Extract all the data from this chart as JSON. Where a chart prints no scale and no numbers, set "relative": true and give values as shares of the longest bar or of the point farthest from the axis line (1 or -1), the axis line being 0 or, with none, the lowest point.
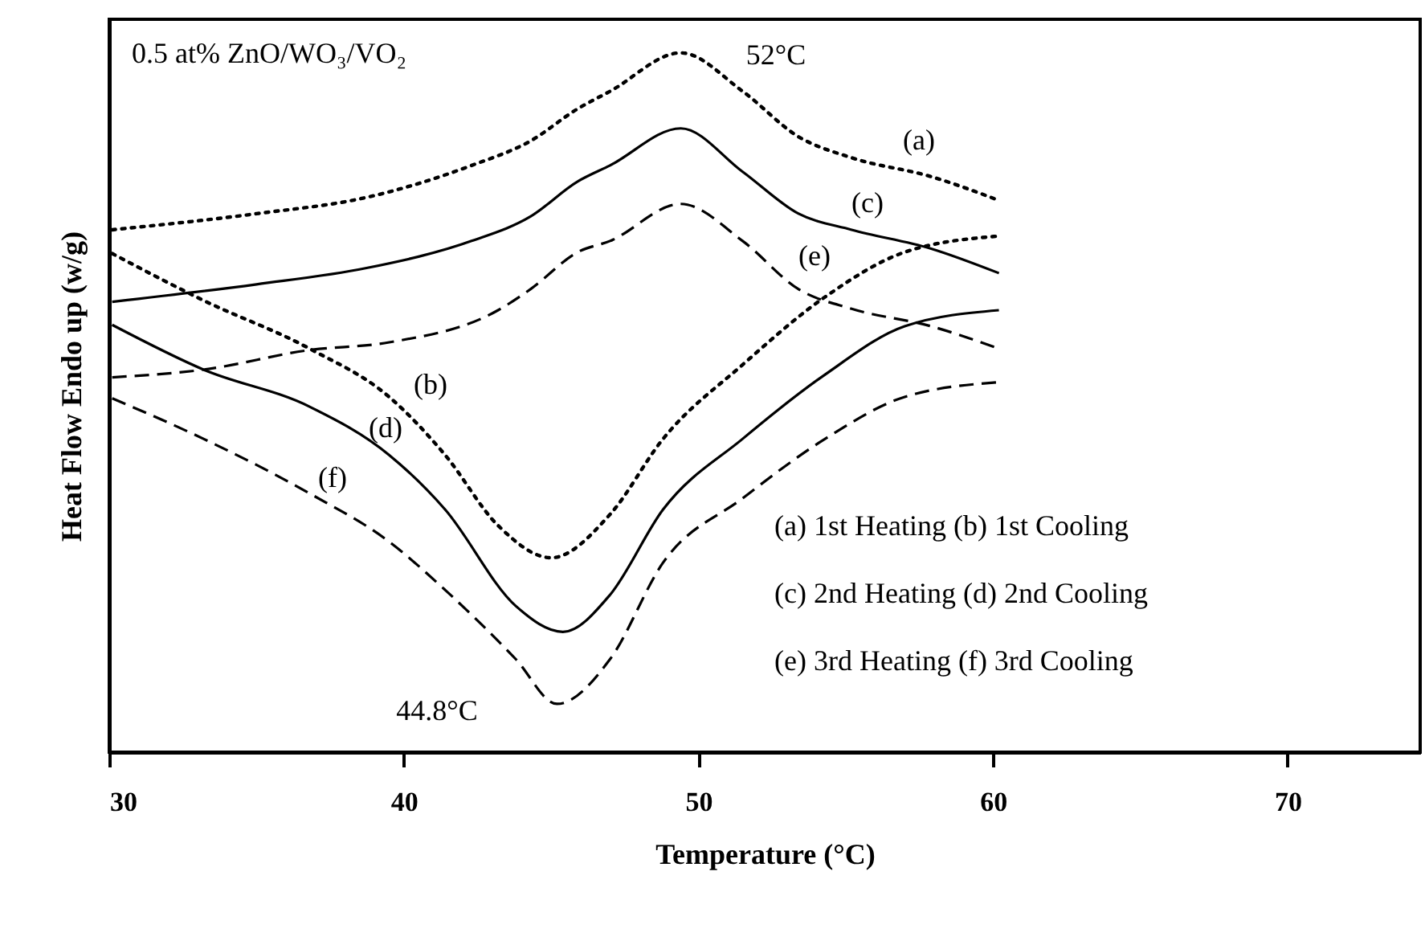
{
  "chart_data": {
    "type": "line",
    "relative": true,
    "xlabel": "Temperature (°C)",
    "ylabel": "Heat Flow Endo up (w/g)",
    "xlim": [
      30,
      74.5
    ],
    "xticks": [
      30,
      40,
      50,
      60,
      70
    ],
    "grid": false,
    "series": [
      {
        "color": "#000000",
        "line_style": "dotted",
        "x": [
          30.1,
          35.0,
          38.7,
          42.3,
          44.3,
          45.9,
          47.0,
          49.4,
          51.5,
          53.4,
          55.2,
          57.9,
          60.2
        ],
        "values": [
          0.747,
          0.77,
          0.793,
          0.839,
          0.874,
          0.92,
          0.945,
          1.0,
          0.945,
          0.88,
          0.85,
          0.823,
          0.789
        ]
      },
      {
        "color": "#000000",
        "line_style": "dotted",
        "x": [
          30.1,
          33.2,
          36.8,
          39.5,
          41.4,
          43.2,
          45.0,
          47.0,
          48.8,
          51.5,
          54.3,
          57.0,
          60.2
        ],
        "values": [
          0.713,
          0.646,
          0.577,
          0.508,
          0.425,
          0.324,
          0.278,
          0.34,
          0.448,
          0.554,
          0.651,
          0.715,
          0.738
        ]
      },
      {
        "color": "#000000",
        "line_style": "solid",
        "x": [
          30.1,
          35.0,
          38.7,
          42.3,
          44.3,
          45.9,
          47.0,
          49.4,
          51.5,
          53.4,
          55.2,
          57.9,
          60.2
        ],
        "values": [
          0.644,
          0.669,
          0.692,
          0.731,
          0.766,
          0.816,
          0.839,
          0.892,
          0.83,
          0.77,
          0.747,
          0.72,
          0.685
        ]
      },
      {
        "color": "#000000",
        "line_style": "solid",
        "x": [
          30.1,
          33.2,
          36.8,
          39.5,
          41.4,
          43.8,
          45.4,
          47.0,
          48.8,
          51.5,
          54.3,
          57.0,
          60.2
        ],
        "values": [
          0.611,
          0.547,
          0.494,
          0.425,
          0.347,
          0.209,
          0.172,
          0.225,
          0.347,
          0.448,
          0.54,
          0.609,
          0.632
        ]
      },
      {
        "color": "#000000",
        "line_style": "dashed",
        "x": [
          30.1,
          33.2,
          36.8,
          39.5,
          43.2,
          44.3,
          45.9,
          47.0,
          49.4,
          51.5,
          53.4,
          55.2,
          57.9,
          60.2
        ],
        "values": [
          0.536,
          0.547,
          0.575,
          0.586,
          0.632,
          0.662,
          0.715,
          0.731,
          0.784,
          0.731,
          0.662,
          0.634,
          0.609,
          0.577
        ]
      },
      {
        "color": "#000000",
        "line_style": "dashed",
        "x": [
          30.1,
          33.2,
          36.8,
          39.5,
          41.4,
          43.8,
          45.2,
          47.0,
          48.8,
          51.5,
          54.3,
          57.0,
          60.2
        ],
        "values": [
          0.506,
          0.448,
          0.37,
          0.301,
          0.232,
          0.133,
          0.069,
          0.133,
          0.271,
          0.363,
          0.448,
          0.508,
          0.529
        ]
      }
    ],
    "annotations": [
      "0.5 at% ZnO/WO₃/VO₂",
      "(a) 1st Heating (b) 1st Cooling",
      "(c) 2nd Heating (d) 2nd Cooling",
      "(e) 3rd Heating (f) 3rd Cooling",
      "52°C",
      "44.8°C",
      "(a)",
      "(c)",
      "(e)",
      "(b)",
      "(d)",
      "(f)"
    ]
  }
}
